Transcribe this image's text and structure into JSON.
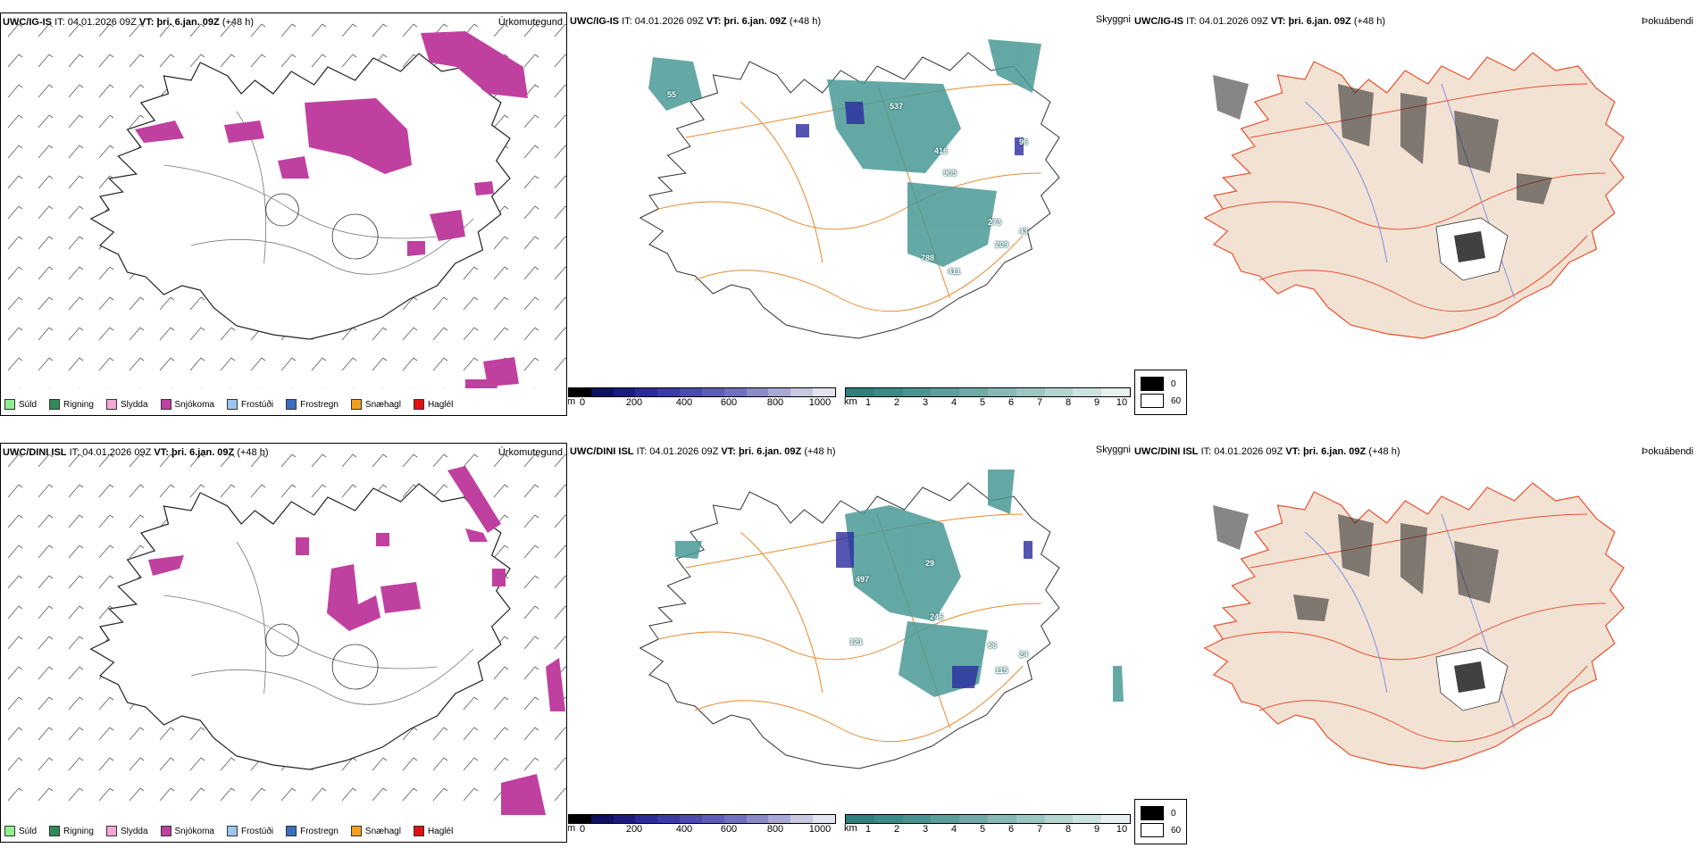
{
  "rows": [
    {
      "model": "UWC/IG-IS",
      "it_label": "IT:",
      "it_value": "04.01.2026 09Z",
      "vt_label": "VT:",
      "vt_value": "þri. 6.jan. 09Z",
      "lead": "(+48 h)"
    },
    {
      "model": "UWC/DINI ISL",
      "it_label": "IT:",
      "it_value": "04.01.2026 09Z",
      "vt_label": "VT:",
      "vt_value": "þri. 6.jan. 09Z",
      "lead": "(+48 h)"
    }
  ],
  "panel_titles": {
    "precip": "Úrkomutegund",
    "cloud": "Skyggni",
    "fog": "Þokuábendi"
  },
  "precip_legend": [
    {
      "label": "Súld",
      "color": "#90ee90"
    },
    {
      "label": "Rigning",
      "color": "#2e8b57"
    },
    {
      "label": "Slydda",
      "color": "#f4a6d7"
    },
    {
      "label": "Snjókoma",
      "color": "#c040a0"
    },
    {
      "label": "Frostúði",
      "color": "#9ec5f0"
    },
    {
      "label": "Frostregn",
      "color": "#3a6fc0"
    },
    {
      "label": "Snæhagl",
      "color": "#f0a020"
    },
    {
      "label": "Haglél",
      "color": "#e01010"
    }
  ],
  "cloudbase_scale": {
    "unit": "m",
    "ticks": [
      "0",
      "200",
      "400",
      "600",
      "800",
      "1000"
    ],
    "colors": [
      "#000000",
      "#101060",
      "#1a1a80",
      "#2a2a9a",
      "#3a3aa8",
      "#4a4ab0",
      "#5c5cb8",
      "#7070c0",
      "#8a8ac8",
      "#a8a8d4",
      "#c8c8e0",
      "#e4e4f0"
    ]
  },
  "visibility_scale": {
    "unit": "km",
    "ticks": [
      "1",
      "2",
      "3",
      "4",
      "5",
      "6",
      "7",
      "8",
      "9",
      "10"
    ],
    "colors": [
      "#2f7f7f",
      "#3a8a88",
      "#4a9490",
      "#5c9e9a",
      "#70aaa6",
      "#86b8b4",
      "#9cc6c2",
      "#b4d4d0",
      "#cce2e0",
      "#e6f0ef"
    ]
  },
  "fog_legend": [
    {
      "label": "0",
      "color": "#000000"
    },
    {
      "label": "60",
      "color": "#ffffff"
    }
  ],
  "map_labels_row1": [
    "55",
    "537",
    "416",
    "905",
    "96",
    "273",
    "788",
    "411",
    "209",
    "43"
  ],
  "map_labels_row2": [
    "29",
    "246",
    "121",
    "66",
    "115",
    "24",
    "497"
  ],
  "colors": {
    "snow": "#c040a0",
    "cloud_teal": "#4a9a96",
    "low_cloud_blue": "#2a2aa0",
    "roads_orange": "#e88a30",
    "fog_land": "#f2e2d4",
    "fog_roads": "#e85030",
    "fog_rivers": "#8090e0"
  }
}
